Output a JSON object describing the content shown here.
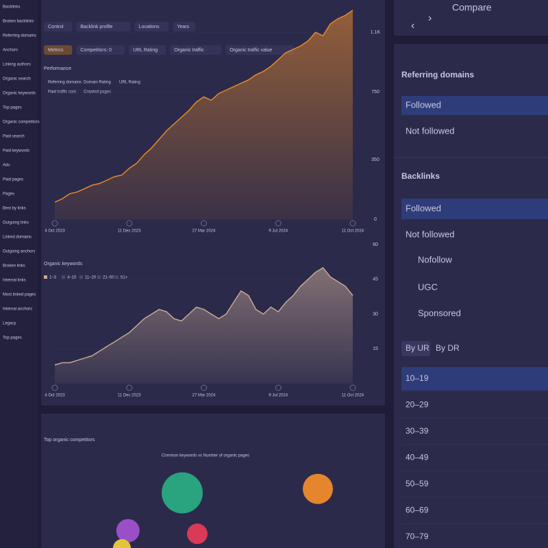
{
  "sidebar": {
    "items": [
      "Backlinks",
      "Broken backlinks",
      "Referring domains",
      "Anchors",
      "Linking authors",
      "Organic search",
      "Organic keywords",
      "Top pages",
      "Organic competitors",
      "Paid search",
      "Paid keywords",
      "Ads",
      "Paid pages",
      "Pages",
      "Best by links",
      "Outgoing links",
      "Linked domains",
      "Outgoing anchors",
      "Broken links",
      "Internal links",
      "Most linked pages",
      "Internal anchors",
      "Legacy",
      "Top pages"
    ]
  },
  "toolbar": {
    "filters": [
      "Control",
      "Backlink profile",
      "Locations",
      "Years"
    ]
  },
  "performance": {
    "title": "Performance",
    "controls": [
      "Metrics",
      "Competitors: 0",
      "URL Rating",
      "Organic traffic",
      "Organic traffic value"
    ],
    "metrics": [
      "Referring domains",
      "Domain Rating",
      "URL Rating",
      "Paid traffic cost",
      "Crawled pages"
    ]
  },
  "traffic_chart": {
    "type": "area",
    "color": "#e8892b",
    "categories": [
      "4 Oct 2023",
      null,
      null,
      null,
      null,
      null,
      null,
      null,
      null,
      null,
      "11 Dec 2023",
      null,
      null,
      null,
      null,
      null,
      null,
      null,
      null,
      null,
      "27 Mar 2024",
      null,
      null,
      null,
      null,
      null,
      null,
      null,
      null,
      null,
      "9 Jul 2024",
      null,
      null,
      null,
      null,
      null,
      null,
      null,
      null,
      null,
      "11 Oct 2024"
    ],
    "values": [
      100,
      120,
      150,
      160,
      180,
      200,
      210,
      230,
      250,
      260,
      300,
      330,
      380,
      420,
      470,
      520,
      560,
      600,
      640,
      690,
      720,
      700,
      740,
      760,
      780,
      800,
      820,
      850,
      870,
      900,
      940,
      980,
      1000,
      1020,
      1050,
      1100,
      1080,
      1150,
      1180,
      1200,
      1230
    ],
    "ylim": [
      0,
      1250
    ],
    "yticks": [
      0,
      350,
      750,
      {
        "value": 1100,
        "label": "1.1K"
      }
    ]
  },
  "keywords_chart": {
    "type": "area",
    "title": "Organic keywords",
    "color": "#c9a894",
    "buckets": [
      "1–3",
      "4–10",
      "11–20",
      "21–50",
      "51+"
    ],
    "categories": [
      "4 Oct 2023",
      null,
      null,
      null,
      null,
      null,
      null,
      null,
      null,
      null,
      "11 Dec 2023",
      null,
      null,
      null,
      null,
      null,
      null,
      null,
      null,
      null,
      "27 Mar 2024",
      null,
      null,
      null,
      null,
      null,
      null,
      null,
      null,
      null,
      "9 Jul 2024",
      null,
      null,
      null,
      null,
      null,
      null,
      null,
      null,
      null,
      "11 Oct 2024"
    ],
    "values": [
      8,
      9,
      9,
      10,
      11,
      12,
      14,
      16,
      18,
      20,
      22,
      25,
      28,
      30,
      32,
      31,
      28,
      27,
      30,
      33,
      32,
      30,
      28,
      30,
      35,
      40,
      38,
      32,
      30,
      33,
      31,
      35,
      38,
      42,
      45,
      48,
      50,
      46,
      44,
      42,
      38
    ],
    "ylim": [
      0,
      65
    ],
    "yticks": [
      15,
      30,
      45,
      60
    ]
  },
  "competitors_chart": {
    "type": "bubble",
    "title": "Top organic competitors",
    "subtitle": "Common keywords vs Number of organic pages",
    "xlim": [
      0,
      100
    ],
    "ylim": [
      0,
      100
    ],
    "points": [
      {
        "x": 40,
        "y": 70,
        "size": 30,
        "color": "#2aa37f"
      },
      {
        "x": 85,
        "y": 75,
        "size": 22,
        "color": "#e5862e"
      },
      {
        "x": 22,
        "y": 22,
        "size": 17,
        "color": "#9a4fc7"
      },
      {
        "x": 45,
        "y": 18,
        "size": 15,
        "color": "#d93a57"
      },
      {
        "x": 20,
        "y": 0,
        "size": 13,
        "color": "#e3c43a"
      }
    ]
  },
  "compare": {
    "label": "Compare"
  },
  "referring_domains": {
    "title": "Referring domains",
    "rows": [
      "Followed",
      "Not followed"
    ]
  },
  "backlinks": {
    "title": "Backlinks",
    "rows": [
      "Followed",
      "Not followed",
      "Nofollow",
      "UGC",
      "Sponsored"
    ]
  },
  "rating_tabs": [
    "By UR",
    "By DR"
  ],
  "ranges": [
    "10–19",
    "20–29",
    "30–39",
    "40–49",
    "50–59",
    "60–69",
    "70–79"
  ]
}
